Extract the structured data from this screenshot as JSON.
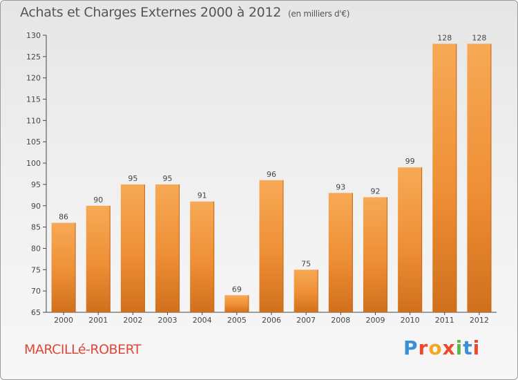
{
  "header": {
    "title": "Achats et Charges Externes 2000 à 2012",
    "subtitle": "(en milliers d'€)"
  },
  "footer": {
    "city": "MARCILLé-ROBERT",
    "logo_letters": [
      "P",
      "r",
      "o",
      "x",
      "i",
      "t",
      "i"
    ],
    "logo_colors": [
      "#3a8fd6",
      "#e84b2f",
      "#f5a623",
      "#e84b2f",
      "#5bb84a",
      "#3a8fd6",
      "#e84b2f"
    ]
  },
  "chart_data": {
    "type": "bar",
    "title": "Achats et Charges Externes 2000 à 2012",
    "subtitle": "(en milliers d'€)",
    "xlabel": "",
    "ylabel": "",
    "categories": [
      "2000",
      "2001",
      "2002",
      "2003",
      "2004",
      "2005",
      "2006",
      "2007",
      "2008",
      "2009",
      "2010",
      "2011",
      "2012"
    ],
    "values": [
      86,
      90,
      95,
      95,
      91,
      69,
      96,
      75,
      93,
      92,
      99,
      128,
      128
    ],
    "ylim": [
      65,
      130
    ],
    "yticks": [
      65,
      70,
      75,
      80,
      85,
      90,
      95,
      100,
      105,
      110,
      115,
      120,
      125,
      130
    ],
    "grid": false,
    "bar_color": "#f0923a",
    "bar_color_dark": "#d0701c"
  }
}
